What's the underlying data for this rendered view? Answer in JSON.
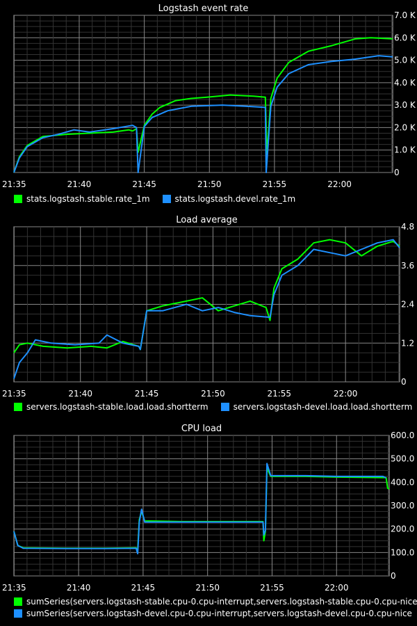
{
  "chart_data": [
    {
      "type": "line",
      "title": "Logstash event rate",
      "x_ticks": [
        "21:35",
        "21:40",
        "21:45",
        "21:50",
        "21:55",
        "22:00"
      ],
      "x_range": [
        21.583,
        22.068
      ],
      "y_ticks": [
        "0",
        "1.0 K",
        "2.0 K",
        "3.0 K",
        "4.0 K",
        "5.0 K",
        "6.0 K",
        "7.0 K"
      ],
      "ylim": [
        0,
        7000
      ],
      "grid": true,
      "legend_position": "bottom-left",
      "series": [
        {
          "name": "stats.logstash.stable.rate_1m",
          "color": "#00ff00",
          "points": [
            [
              21.583,
              0
            ],
            [
              21.59,
              700
            ],
            [
              21.6,
              1200
            ],
            [
              21.62,
              1600
            ],
            [
              21.65,
              1700
            ],
            [
              21.68,
              1750
            ],
            [
              21.71,
              1800
            ],
            [
              21.73,
              1900
            ],
            [
              21.735,
              1850
            ],
            [
              21.74,
              1950
            ],
            [
              21.742,
              900
            ],
            [
              21.75,
              2100
            ],
            [
              21.76,
              2600
            ],
            [
              21.77,
              2900
            ],
            [
              21.79,
              3200
            ],
            [
              21.81,
              3300
            ],
            [
              21.83,
              3350
            ],
            [
              21.86,
              3450
            ],
            [
              21.89,
              3400
            ],
            [
              21.905,
              3350
            ],
            [
              21.907,
              800
            ],
            [
              21.912,
              3300
            ],
            [
              21.92,
              4200
            ],
            [
              21.935,
              4900
            ],
            [
              21.96,
              5400
            ],
            [
              21.99,
              5650
            ],
            [
              22.02,
              5950
            ],
            [
              22.04,
              6000
            ],
            [
              22.068,
              5950
            ]
          ]
        },
        {
          "name": "stats.logstash.devel.rate_1m",
          "color": "#1e90ff",
          "points": [
            [
              21.583,
              0
            ],
            [
              21.59,
              650
            ],
            [
              21.6,
              1150
            ],
            [
              21.62,
              1550
            ],
            [
              21.64,
              1700
            ],
            [
              21.66,
              1900
            ],
            [
              21.68,
              1800
            ],
            [
              21.71,
              1950
            ],
            [
              21.735,
              2100
            ],
            [
              21.74,
              2000
            ],
            [
              21.742,
              0
            ],
            [
              21.75,
              2050
            ],
            [
              21.76,
              2450
            ],
            [
              21.78,
              2750
            ],
            [
              21.81,
              2950
            ],
            [
              21.85,
              3000
            ],
            [
              21.88,
              2950
            ],
            [
              21.905,
              2900
            ],
            [
              21.906,
              0
            ],
            [
              21.912,
              2950
            ],
            [
              21.92,
              3800
            ],
            [
              21.935,
              4400
            ],
            [
              21.96,
              4800
            ],
            [
              21.99,
              4950
            ],
            [
              22.02,
              5050
            ],
            [
              22.05,
              5200
            ],
            [
              22.068,
              5150
            ]
          ]
        }
      ]
    },
    {
      "type": "line",
      "title": "Load average",
      "x_ticks": [
        "21:35",
        "21:40",
        "21:45",
        "21:50",
        "21:55",
        "22:00"
      ],
      "x_range": [
        21.583,
        22.068
      ],
      "y_ticks": [
        "0",
        "1.2",
        "2.4",
        "3.6",
        "4.8"
      ],
      "ylim": [
        0,
        4.8
      ],
      "grid": true,
      "legend_position": "bottom-left",
      "series": [
        {
          "name": "servers.logstash-stable.load.load.shortterm",
          "color": "#00ff00",
          "points": [
            [
              21.583,
              0.9
            ],
            [
              21.59,
              1.15
            ],
            [
              21.6,
              1.2
            ],
            [
              21.62,
              1.1
            ],
            [
              21.65,
              1.05
            ],
            [
              21.68,
              1.1
            ],
            [
              21.7,
              1.05
            ],
            [
              21.72,
              1.25
            ],
            [
              21.74,
              1.1
            ],
            [
              21.742,
              1.0
            ],
            [
              21.75,
              2.2
            ],
            [
              21.77,
              2.35
            ],
            [
              21.8,
              2.5
            ],
            [
              21.82,
              2.6
            ],
            [
              21.84,
              2.2
            ],
            [
              21.86,
              2.35
            ],
            [
              21.88,
              2.5
            ],
            [
              21.9,
              2.3
            ],
            [
              21.905,
              1.9
            ],
            [
              21.91,
              2.9
            ],
            [
              21.92,
              3.5
            ],
            [
              21.94,
              3.8
            ],
            [
              21.96,
              4.3
            ],
            [
              21.98,
              4.4
            ],
            [
              22.0,
              4.3
            ],
            [
              22.02,
              3.9
            ],
            [
              22.04,
              4.2
            ],
            [
              22.06,
              4.35
            ],
            [
              22.068,
              4.2
            ]
          ]
        },
        {
          "name": "servers.logstash-devel.load.load.shortterm",
          "color": "#1e90ff",
          "points": [
            [
              21.583,
              0.1
            ],
            [
              21.59,
              0.6
            ],
            [
              21.6,
              0.9
            ],
            [
              21.61,
              1.3
            ],
            [
              21.63,
              1.2
            ],
            [
              21.66,
              1.15
            ],
            [
              21.69,
              1.2
            ],
            [
              21.7,
              1.45
            ],
            [
              21.72,
              1.2
            ],
            [
              21.74,
              1.1
            ],
            [
              21.742,
              1.0
            ],
            [
              21.75,
              2.2
            ],
            [
              21.77,
              2.2
            ],
            [
              21.8,
              2.4
            ],
            [
              21.82,
              2.2
            ],
            [
              21.84,
              2.3
            ],
            [
              21.86,
              2.15
            ],
            [
              21.88,
              2.05
            ],
            [
              21.905,
              2.0
            ],
            [
              21.91,
              2.7
            ],
            [
              21.92,
              3.3
            ],
            [
              21.94,
              3.6
            ],
            [
              21.96,
              4.1
            ],
            [
              21.98,
              4.0
            ],
            [
              22.0,
              3.9
            ],
            [
              22.02,
              4.1
            ],
            [
              22.04,
              4.3
            ],
            [
              22.06,
              4.4
            ],
            [
              22.068,
              4.15
            ]
          ]
        }
      ]
    },
    {
      "type": "line",
      "title": "CPU load",
      "x_ticks": [
        "21:35",
        "21:40",
        "21:45",
        "21:50",
        "21:55",
        "22:00"
      ],
      "x_range": [
        21.583,
        22.068
      ],
      "y_ticks": [
        "0",
        "100.0",
        "200.0",
        "300.0",
        "400.0",
        "500.0",
        "600.0"
      ],
      "ylim": [
        0,
        600
      ],
      "grid": true,
      "legend_position": "bottom-left",
      "series": [
        {
          "name": "sumSeries(servers.logstash-stable.cpu-0.cpu-interrupt,servers.logstash-stable.cpu-0.cpu-nice",
          "color": "#00ff00",
          "points": [
            [
              21.583,
              190
            ],
            [
              21.588,
              130
            ],
            [
              21.595,
              120
            ],
            [
              21.65,
              118
            ],
            [
              21.7,
              118
            ],
            [
              21.741,
              120
            ],
            [
              21.743,
              110
            ],
            [
              21.745,
              240
            ],
            [
              21.748,
              275
            ],
            [
              21.752,
              235
            ],
            [
              21.8,
              232
            ],
            [
              21.85,
              232
            ],
            [
              21.905,
              232
            ],
            [
              21.906,
              150
            ],
            [
              21.908,
              190
            ],
            [
              21.91,
              460
            ],
            [
              21.915,
              425
            ],
            [
              21.96,
              425
            ],
            [
              22.0,
              422
            ],
            [
              22.06,
              420
            ],
            [
              22.064,
              420
            ],
            [
              22.066,
              375
            ],
            [
              22.068,
              372
            ]
          ]
        },
        {
          "name": "sumSeries(servers.logstash-devel.cpu-0.cpu-interrupt,servers.logstash-devel.cpu-0.cpu-nice",
          "color": "#1e90ff",
          "points": [
            [
              21.583,
              190
            ],
            [
              21.588,
              130
            ],
            [
              21.595,
              118
            ],
            [
              21.65,
              117
            ],
            [
              21.7,
              117
            ],
            [
              21.741,
              118
            ],
            [
              21.743,
              95
            ],
            [
              21.745,
              230
            ],
            [
              21.748,
              285
            ],
            [
              21.752,
              230
            ],
            [
              21.8,
              230
            ],
            [
              21.85,
              230
            ],
            [
              21.905,
              230
            ],
            [
              21.906,
              175
            ],
            [
              21.908,
              195
            ],
            [
              21.91,
              480
            ],
            [
              21.915,
              428
            ],
            [
              21.96,
              428
            ],
            [
              22.0,
              425
            ],
            [
              22.06,
              425
            ],
            [
              22.064,
              418
            ]
          ]
        }
      ]
    }
  ]
}
